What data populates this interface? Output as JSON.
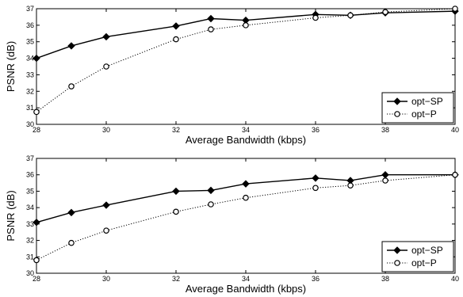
{
  "chart_data": [
    {
      "type": "line",
      "xlabel": "Average Bandwidth (kbps)",
      "ylabel": "PSNR (dB)",
      "xlim": [
        28,
        40
      ],
      "ylim": [
        30,
        37
      ],
      "xticks": [
        28,
        30,
        32,
        34,
        36,
        38,
        40
      ],
      "yticks": [
        30,
        31,
        32,
        33,
        34,
        35,
        36,
        37
      ],
      "legend_position": "bottom-right",
      "series": [
        {
          "name": "opt−SP",
          "style": "solid",
          "marker": "diamond",
          "x": [
            28,
            29,
            30,
            32,
            33,
            34,
            36,
            37,
            38,
            40
          ],
          "y": [
            34.0,
            34.75,
            35.3,
            35.95,
            36.4,
            36.3,
            36.65,
            36.6,
            36.75,
            36.85
          ]
        },
        {
          "name": "opt−P",
          "style": "dotted",
          "marker": "circle",
          "x": [
            28,
            29,
            30,
            32,
            33,
            34,
            36,
            37,
            38,
            40
          ],
          "y": [
            30.75,
            32.3,
            33.5,
            35.15,
            35.75,
            36.0,
            36.45,
            36.6,
            36.8,
            37.0
          ]
        }
      ]
    },
    {
      "type": "line",
      "xlabel": "Average Bandwidth (kbps)",
      "ylabel": "PSNR (dB)",
      "xlim": [
        28,
        40
      ],
      "ylim": [
        30,
        37
      ],
      "xticks": [
        28,
        30,
        32,
        34,
        36,
        38,
        40
      ],
      "yticks": [
        30,
        31,
        32,
        33,
        34,
        35,
        36,
        37
      ],
      "legend_position": "bottom-right",
      "series": [
        {
          "name": "opt−SP",
          "style": "solid",
          "marker": "diamond",
          "x": [
            28,
            29,
            30,
            32,
            33,
            34,
            36,
            37,
            38,
            40
          ],
          "y": [
            33.1,
            33.7,
            34.15,
            35.0,
            35.05,
            35.45,
            35.8,
            35.65,
            36.0,
            36.0
          ]
        },
        {
          "name": "opt−P",
          "style": "dotted",
          "marker": "circle",
          "x": [
            28,
            29,
            30,
            32,
            33,
            34,
            36,
            37,
            38,
            40
          ],
          "y": [
            30.8,
            31.85,
            32.6,
            33.75,
            34.2,
            34.6,
            35.2,
            35.35,
            35.65,
            36.0
          ]
        }
      ]
    }
  ]
}
